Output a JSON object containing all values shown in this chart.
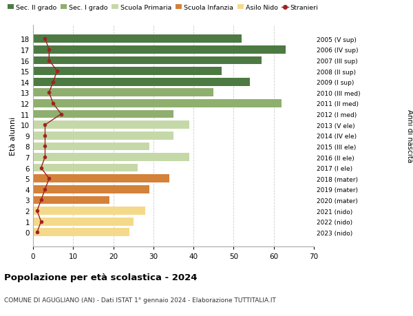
{
  "ages": [
    0,
    1,
    2,
    3,
    4,
    5,
    6,
    7,
    8,
    9,
    10,
    11,
    12,
    13,
    14,
    15,
    16,
    17,
    18
  ],
  "values": [
    24,
    25,
    28,
    19,
    29,
    34,
    26,
    39,
    29,
    35,
    39,
    35,
    62,
    45,
    54,
    47,
    57,
    63,
    52
  ],
  "stranieri": [
    1,
    2,
    1,
    2,
    3,
    4,
    2,
    3,
    3,
    3,
    3,
    7,
    5,
    4,
    5,
    6,
    4,
    4,
    3
  ],
  "right_labels": [
    "2023 (nido)",
    "2022 (nido)",
    "2021 (nido)",
    "2020 (mater)",
    "2019 (mater)",
    "2018 (mater)",
    "2017 (I ele)",
    "2016 (II ele)",
    "2015 (III ele)",
    "2014 (IV ele)",
    "2013 (V ele)",
    "2012 (I med)",
    "2011 (II med)",
    "2010 (III med)",
    "2009 (I sup)",
    "2008 (II sup)",
    "2007 (III sup)",
    "2006 (IV sup)",
    "2005 (V sup)"
  ],
  "bar_colors": [
    "#f5d98a",
    "#f5d98a",
    "#f5d98a",
    "#d4813a",
    "#d4813a",
    "#d4813a",
    "#c5d9a8",
    "#c5d9a8",
    "#c5d9a8",
    "#c5d9a8",
    "#c5d9a8",
    "#8faf6e",
    "#8faf6e",
    "#8faf6e",
    "#4d7a42",
    "#4d7a42",
    "#4d7a42",
    "#4d7a42",
    "#4d7a42"
  ],
  "legend_labels": [
    "Sec. II grado",
    "Sec. I grado",
    "Scuola Primaria",
    "Scuola Infanzia",
    "Asilo Nido",
    "Stranieri"
  ],
  "legend_colors": [
    "#4d7a42",
    "#8faf6e",
    "#c5d9a8",
    "#d4813a",
    "#f5d98a",
    "#a02020"
  ],
  "title": "Popolazione per età scolastica - 2024",
  "subtitle": "COMUNE DI AGUGLIANO (AN) - Dati ISTAT 1° gennaio 2024 - Elaborazione TUTTITALIA.IT",
  "ylabel": "Età alunni",
  "right_ylabel": "Anni di nascita",
  "xlim": [
    0,
    70
  ],
  "xticks": [
    0,
    10,
    20,
    30,
    40,
    50,
    60,
    70
  ],
  "bg_color": "#ffffff",
  "grid_color": "#cccccc",
  "stranieri_color": "#a02020",
  "bar_height": 0.75
}
